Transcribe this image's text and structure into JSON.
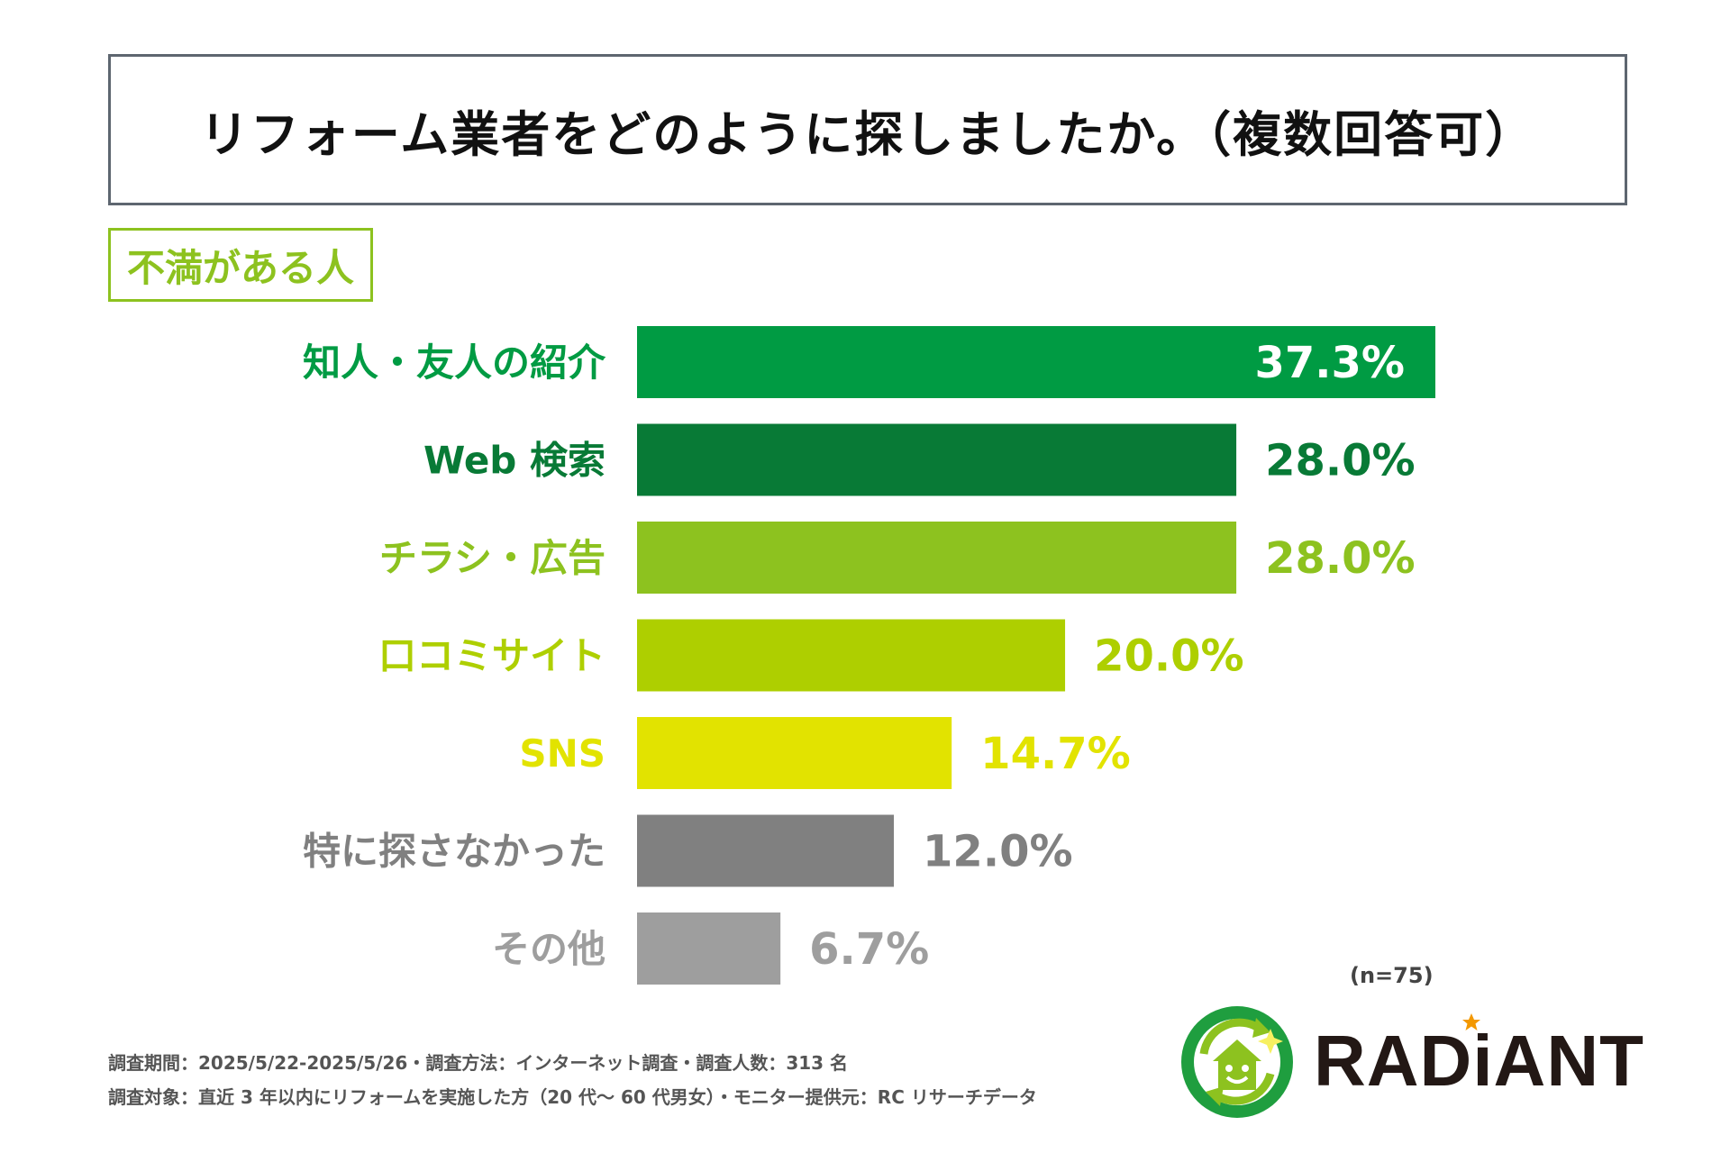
{
  "header": {
    "title": "リフォーム業者をどのように探しましたか。（複数回答可）"
  },
  "segment": {
    "label": "不満がある人"
  },
  "chart_data": {
    "type": "bar",
    "orientation": "horizontal",
    "title": "リフォーム業者をどのように探しましたか。（複数回答可）",
    "subtitle": "不満がある人",
    "xlim": [
      0,
      40
    ],
    "grid": false,
    "categories": [
      "知人・友人の紹介",
      "Web 検索",
      "チラシ・広告",
      "口コミサイト",
      "SNS",
      "特に探さなかった",
      "その他"
    ],
    "values": [
      37.3,
      28.0,
      28.0,
      20.0,
      14.7,
      12.0,
      6.7
    ],
    "value_labels": [
      "37.3%",
      "28.0%",
      "28.0%",
      "20.0%",
      "14.7%",
      "12.0%",
      "6.7%"
    ],
    "colors": [
      "#009b43",
      "#087a36",
      "#8dc21f",
      "#aecf00",
      "#e2e300",
      "#808080",
      "#9e9e9e"
    ],
    "label_inside": [
      true,
      false,
      false,
      false,
      false,
      false,
      false
    ]
  },
  "sample_note": "(n=75)",
  "footnotes": [
    "調査期間：2025/5/22-2025/5/26・調査方法：インターネット調査・調査人数：313 名",
    "調査対象：直近 3 年以内にリフォームを実施した方（20 代〜 60 代男女）・モニター提供元：RC リサーチデータ"
  ],
  "logo": {
    "text": "RADiANT",
    "icon": "house-recycle-logo-icon",
    "ring_color": "#1f9e3f",
    "star_color": "#f39800"
  }
}
